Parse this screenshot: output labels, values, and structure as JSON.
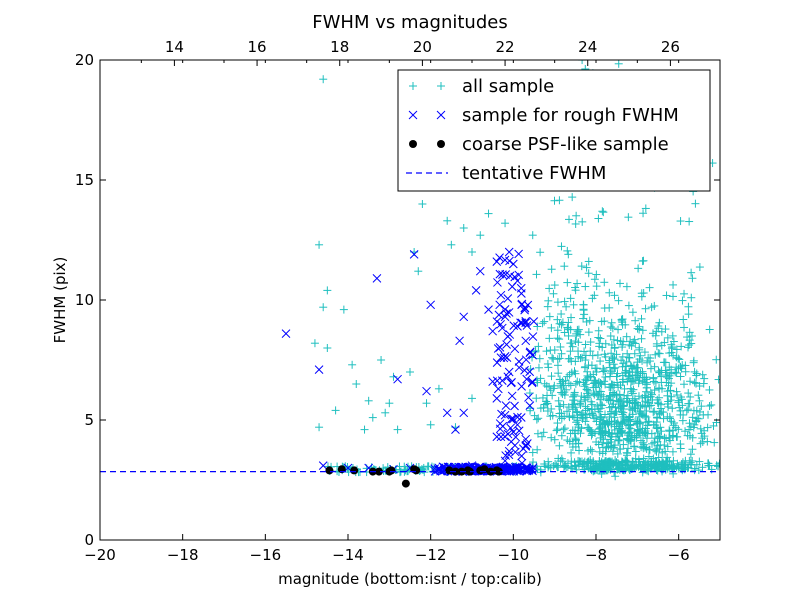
{
  "chart_data": {
    "type": "scatter",
    "title": "FWHM vs magnitudes",
    "xlabel": "magnitude (bottom:isnt / top:calib)",
    "ylabel": "FWHM (pix)",
    "xlim": [
      -20,
      -5
    ],
    "ylim": [
      0,
      20
    ],
    "x_ticks": [
      -20,
      -18,
      -16,
      -14,
      -12,
      -10,
      -8,
      -6
    ],
    "x_tick_labels": [
      "−20",
      "−18",
      "−16",
      "−14",
      "−12",
      "−10",
      "−8",
      "−6"
    ],
    "y_ticks": [
      0,
      5,
      10,
      15,
      20
    ],
    "y_tick_labels": [
      "0",
      "5",
      "10",
      "15",
      "20"
    ],
    "top_axis": {
      "ticks": [
        14,
        16,
        18,
        20,
        22,
        24,
        26
      ],
      "tick_labels": [
        "14",
        "16",
        "18",
        "20",
        "22",
        "24",
        "26"
      ],
      "offset": 32.2
    },
    "grid": false,
    "legend_position": "top-right",
    "colors": {
      "all_sample": "#1fbfbf",
      "rough_sample": "#0000ff",
      "psf_sample": "#000000",
      "tentative_fwhm": "#0000ff"
    },
    "tentative_fwhm": 2.85,
    "series": [
      {
        "name": "all sample",
        "marker": "plus",
        "color": "#1fbfbf",
        "points": [
          [
            -14.6,
            19.2
          ],
          [
            -14.7,
            12.3
          ],
          [
            -14.5,
            10.4
          ],
          [
            -14.6,
            9.7
          ],
          [
            -14.1,
            9.6
          ],
          [
            -14.8,
            8.2
          ],
          [
            -14.5,
            8.0
          ],
          [
            -13.9,
            7.3
          ],
          [
            -13.8,
            6.5
          ],
          [
            -13.2,
            7.5
          ],
          [
            -13.5,
            5.8
          ],
          [
            -13.0,
            5.7
          ],
          [
            -14.3,
            5.4
          ],
          [
            -13.4,
            5.1
          ],
          [
            -13.1,
            5.3
          ],
          [
            -14.7,
            4.7
          ],
          [
            -13.6,
            4.6
          ],
          [
            -12.8,
            4.6
          ],
          [
            -12.0,
            4.8
          ],
          [
            -11.4,
            4.7
          ],
          [
            -12.2,
            14.0
          ],
          [
            -11.6,
            13.3
          ],
          [
            -11.2,
            13.0
          ],
          [
            -11.0,
            12.0
          ],
          [
            -11.5,
            12.3
          ],
          [
            -10.8,
            12.7
          ],
          [
            -10.6,
            13.6
          ],
          [
            -10.2,
            13.2
          ],
          [
            -12.4,
            12.0
          ],
          [
            -12.3,
            11.2
          ],
          [
            -12.5,
            7.0
          ],
          [
            -12.9,
            6.8
          ],
          [
            -12.1,
            5.7
          ],
          [
            -11.8,
            6.3
          ],
          [
            -11.0,
            5.9
          ]
        ],
        "dense_region": {
          "x_range": [
            -9.6,
            -5.0
          ],
          "y_range": [
            2.5,
            14.5
          ],
          "center": [
            -7.5,
            5.0
          ],
          "count": 1400,
          "spread_x": 1.2,
          "spread_y": 2.5
        }
      },
      {
        "name": "sample for rough FWHM",
        "marker": "x",
        "color": "#0000ff",
        "points": [
          [
            -15.5,
            8.6
          ],
          [
            -14.7,
            7.1
          ],
          [
            -14.6,
            3.1
          ],
          [
            -13.3,
            10.9
          ],
          [
            -12.8,
            6.7
          ],
          [
            -12.4,
            11.9
          ],
          [
            -12.0,
            9.8
          ],
          [
            -12.1,
            6.2
          ],
          [
            -11.6,
            5.3
          ],
          [
            -11.4,
            4.6
          ],
          [
            -11.2,
            5.3
          ],
          [
            -11.3,
            8.3
          ],
          [
            -10.9,
            10.4
          ],
          [
            -11.2,
            9.3
          ],
          [
            -10.8,
            11.2
          ],
          [
            -10.6,
            9.6
          ],
          [
            -10.4,
            11.6
          ],
          [
            -10.3,
            10.2
          ],
          [
            -10.1,
            12.0
          ],
          [
            -10.2,
            9.3
          ],
          [
            -10.5,
            8.7
          ],
          [
            -10.0,
            11.5
          ],
          [
            -9.9,
            10.8
          ],
          [
            -9.8,
            9.8
          ],
          [
            -9.9,
            8.9
          ],
          [
            -9.7,
            8.3
          ],
          [
            -10.3,
            7.6
          ],
          [
            -10.1,
            7.0
          ],
          [
            -9.8,
            6.4
          ],
          [
            -9.6,
            7.8
          ],
          [
            -10.4,
            5.9
          ],
          [
            -10.2,
            5.2
          ],
          [
            -9.9,
            4.8
          ],
          [
            -9.7,
            4.2
          ],
          [
            -10.3,
            4.3
          ],
          [
            -10.1,
            3.7
          ],
          [
            -9.8,
            3.5
          ],
          [
            -10.5,
            6.6
          ],
          [
            -9.6,
            5.6
          ],
          [
            -9.7,
            3.9
          ],
          [
            -10.2,
            3.3
          ],
          [
            -10.0,
            4.5
          ],
          [
            -11.0,
            3.1
          ],
          [
            -12.5,
            3.0
          ],
          [
            -13.5,
            3.0
          ],
          [
            -14.0,
            3.0
          ],
          [
            -11.8,
            3.0
          ],
          [
            -10.8,
            3.05
          ],
          [
            -11.5,
            2.95
          ],
          [
            -12.9,
            2.95
          ]
        ]
      },
      {
        "name": "coarse PSF-like sample",
        "marker": "dot",
        "color": "#000000",
        "points": [
          [
            -14.45,
            2.9
          ],
          [
            -14.15,
            2.95
          ],
          [
            -13.85,
            2.9
          ],
          [
            -13.4,
            2.85
          ],
          [
            -13.25,
            2.85
          ],
          [
            -13.0,
            2.85
          ],
          [
            -12.95,
            2.9
          ],
          [
            -12.6,
            2.35
          ],
          [
            -12.4,
            2.95
          ],
          [
            -12.35,
            2.9
          ],
          [
            -11.55,
            2.9
          ],
          [
            -11.4,
            2.85
          ],
          [
            -11.25,
            2.85
          ],
          [
            -11.1,
            2.9
          ],
          [
            -11.05,
            2.85
          ],
          [
            -10.8,
            2.9
          ],
          [
            -10.7,
            2.95
          ],
          [
            -10.55,
            2.85
          ],
          [
            -10.4,
            2.9
          ],
          [
            -10.35,
            2.85
          ]
        ]
      },
      {
        "name": "tentative FWHM",
        "marker": "dashed-line",
        "color": "#0000ff",
        "y": 2.85
      }
    ]
  }
}
